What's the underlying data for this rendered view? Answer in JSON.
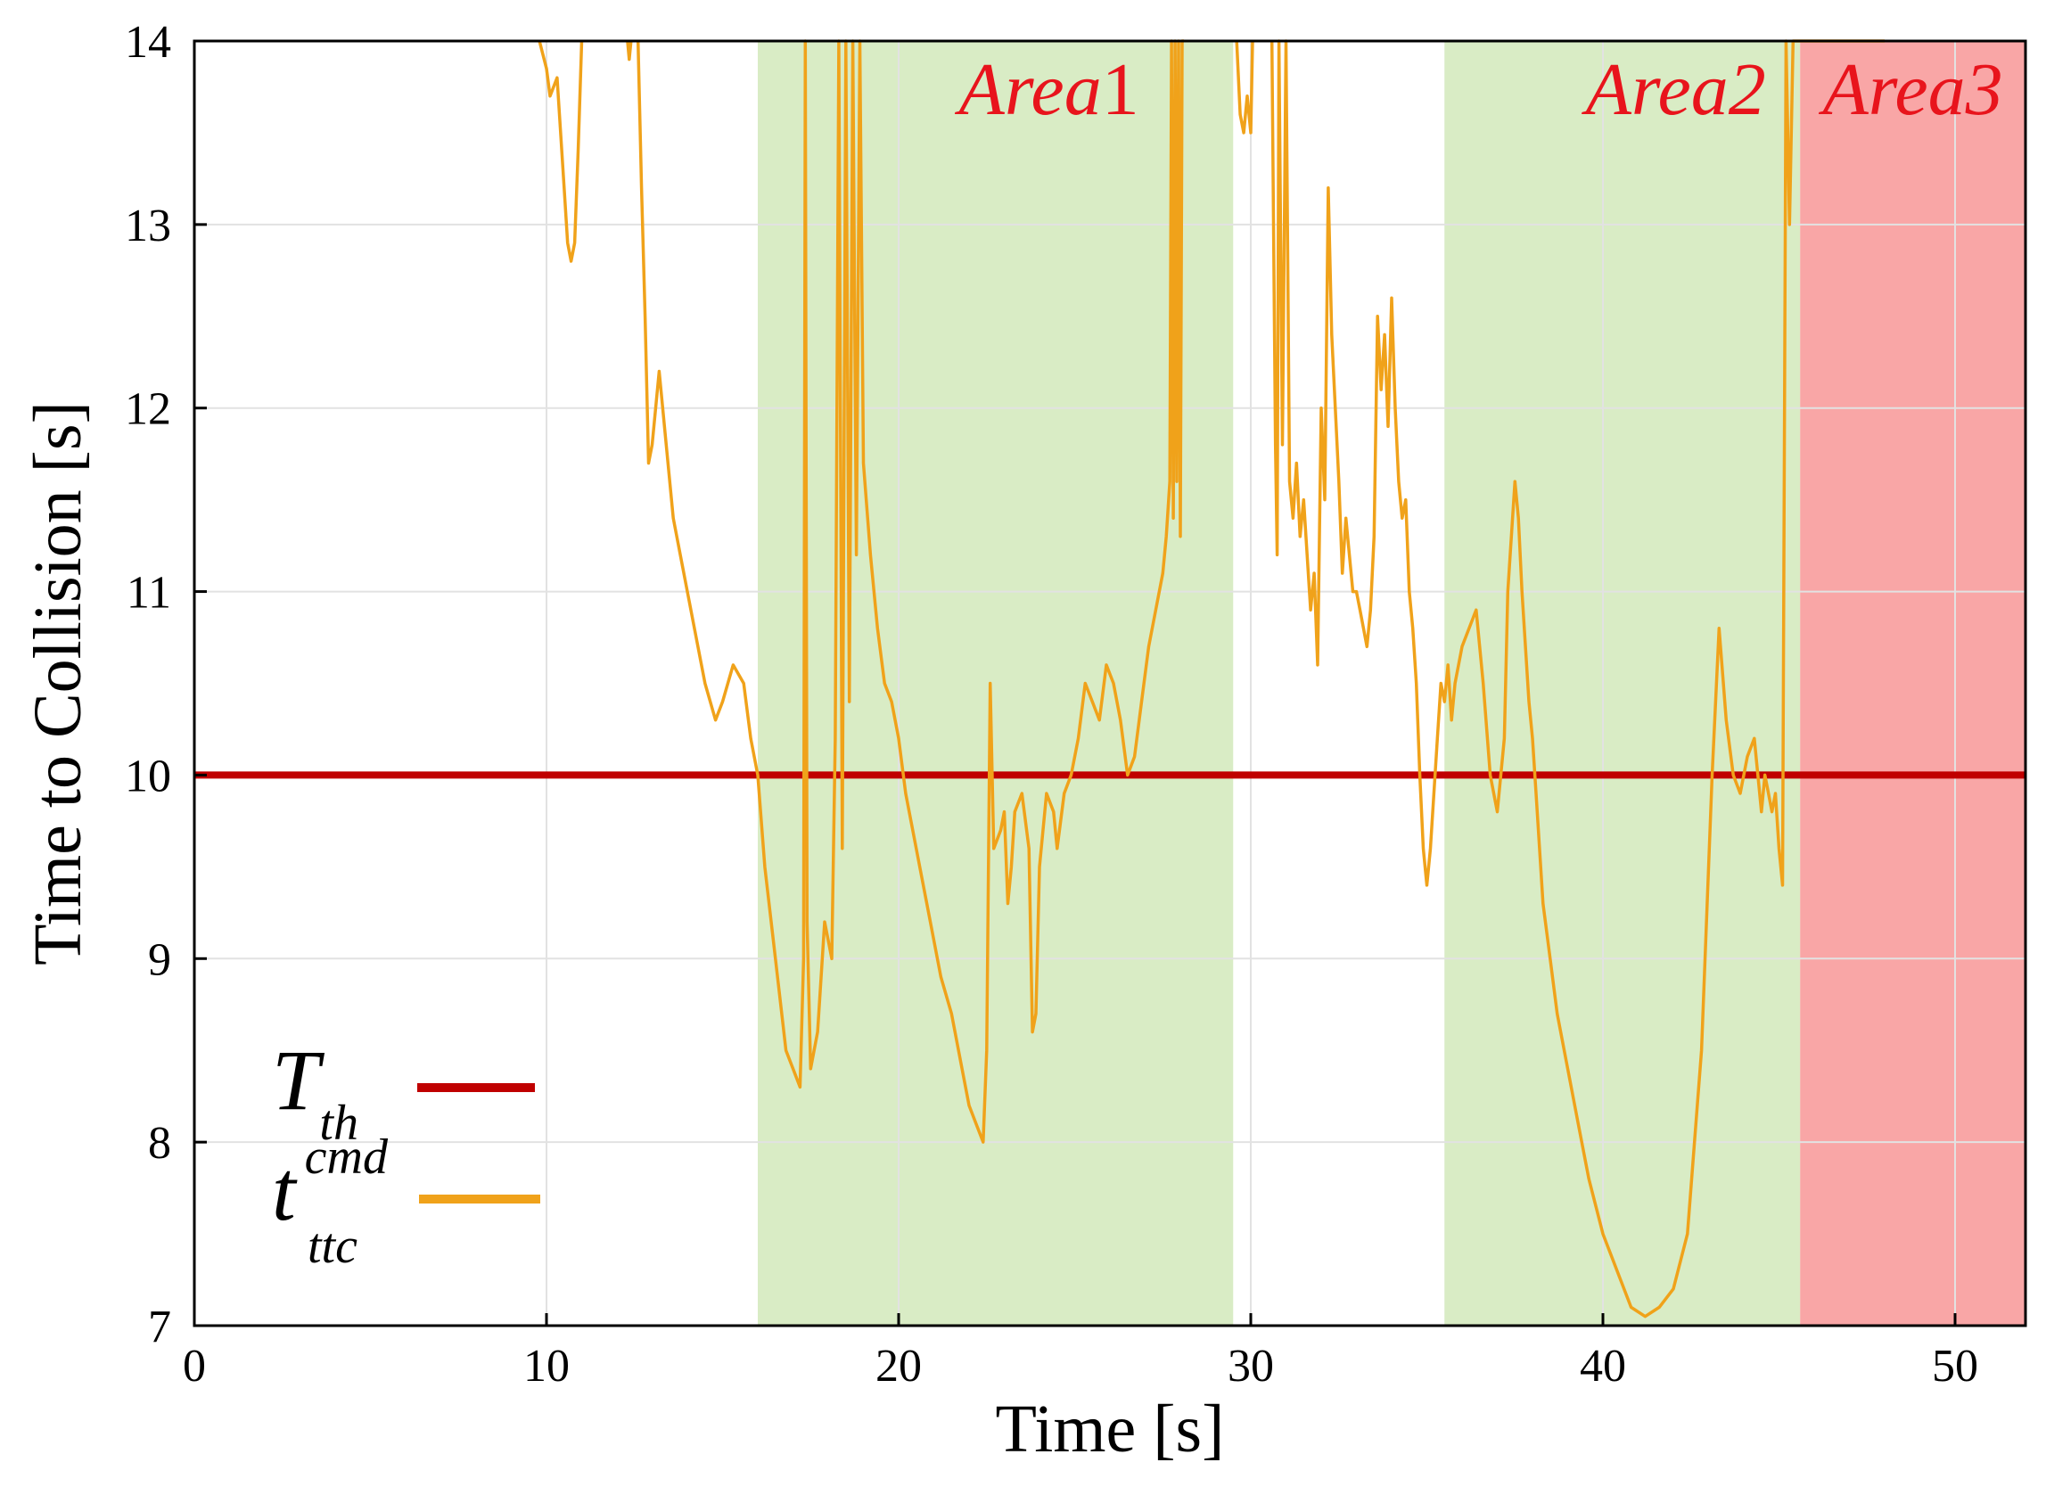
{
  "chart_data": {
    "type": "line",
    "title": "",
    "xlabel": "Time [s]",
    "ylabel": "Time to Collision [s]",
    "xlim": [
      0,
      52
    ],
    "ylim": [
      7,
      14
    ],
    "xticks": [
      0,
      10,
      20,
      30,
      40,
      50
    ],
    "yticks": [
      7,
      8,
      9,
      10,
      11,
      12,
      13,
      14
    ],
    "grid": true,
    "legend_position": "bottom-left",
    "regions": [
      {
        "label_main": "Area",
        "label_num": "1",
        "x_start": 16.0,
        "x_end": 29.5,
        "color": "#d9ecc5",
        "label_color": "#e8141c"
      },
      {
        "label_main": "Area2",
        "label_num": "",
        "x_start": 35.5,
        "x_end": 45.6,
        "color": "#d9ecc5",
        "label_color": "#e8141c"
      },
      {
        "label_main": "Area3",
        "label_num": "",
        "x_start": 45.6,
        "x_end": 52.0,
        "color": "#f9a6a6",
        "label_color": "#e8141c"
      }
    ],
    "series": [
      {
        "name": "T_th",
        "legend_base": "T",
        "legend_sub": "th",
        "legend_sup": "",
        "color": "#c00000",
        "x": [
          0,
          52
        ],
        "values": [
          10,
          10
        ]
      },
      {
        "name": "t_ttc^cmd",
        "legend_base": "t",
        "legend_sub": "ttc",
        "legend_sup": "cmd",
        "color": "#f0a21a",
        "segments": [
          {
            "x": [
              9.8,
              10.0,
              10.1,
              10.3,
              10.5,
              10.6,
              10.7,
              10.8,
              10.9,
              11.0
            ],
            "values": [
              14.0,
              13.85,
              13.7,
              13.8,
              13.2,
              12.9,
              12.8,
              12.9,
              13.4,
              14.0
            ]
          },
          {
            "x": [
              12.3,
              12.35,
              12.4
            ],
            "values": [
              14.0,
              13.9,
              14.0
            ]
          },
          {
            "x": [
              12.6,
              12.7,
              12.8,
              12.9,
              13.0,
              13.2,
              13.4,
              13.6,
              13.8,
              14.0,
              14.2,
              14.5,
              14.8,
              15.0,
              15.3,
              15.6,
              15.8,
              16.0,
              16.2,
              16.5,
              16.8,
              17.0,
              17.2,
              17.3,
              17.35,
              17.4,
              17.5,
              17.7,
              17.9,
              18.1,
              18.2,
              18.3,
              18.4,
              18.5,
              18.6,
              18.7,
              18.8,
              18.9,
              19.0,
              19.2,
              19.4,
              19.6,
              19.8,
              20.0,
              20.2,
              20.4,
              20.6,
              20.8,
              21.0,
              21.2,
              21.5,
              21.8,
              22.0,
              22.2,
              22.4,
              22.5,
              22.6,
              22.7,
              22.9,
              23.0,
              23.1,
              23.2,
              23.3,
              23.5,
              23.7,
              23.8,
              23.9,
              24.0,
              24.2,
              24.4,
              24.5,
              24.7,
              24.9,
              25.1,
              25.3,
              25.5,
              25.7,
              25.9,
              26.1,
              26.3,
              26.5,
              26.7,
              26.9,
              27.1,
              27.3,
              27.5,
              27.6,
              27.7,
              27.75,
              27.8,
              27.85,
              27.9,
              27.95,
              28.0,
              28.05,
              28.1
            ],
            "values": [
              14.0,
              13.2,
              12.5,
              11.7,
              11.8,
              12.2,
              11.8,
              11.4,
              11.2,
              11.0,
              10.8,
              10.5,
              10.3,
              10.4,
              10.6,
              10.5,
              10.2,
              10.0,
              9.5,
              9.0,
              8.5,
              8.4,
              8.3,
              9.0,
              14.0,
              9.2,
              8.4,
              8.6,
              9.2,
              9.0,
              10.2,
              14.0,
              9.6,
              14.0,
              10.4,
              14.0,
              11.2,
              14.0,
              11.7,
              11.2,
              10.8,
              10.5,
              10.4,
              10.2,
              9.9,
              9.7,
              9.5,
              9.3,
              9.1,
              8.9,
              8.7,
              8.4,
              8.2,
              8.1,
              8.0,
              8.5,
              10.5,
              9.6,
              9.7,
              9.8,
              9.3,
              9.5,
              9.8,
              9.9,
              9.6,
              8.6,
              8.7,
              9.5,
              9.9,
              9.8,
              9.6,
              9.9,
              10.0,
              10.2,
              10.5,
              10.4,
              10.3,
              10.6,
              10.5,
              10.3,
              10.0,
              10.1,
              10.4,
              10.7,
              10.9,
              11.1,
              11.3,
              11.6,
              14.0,
              11.4,
              14.0,
              11.6,
              14.0,
              11.3,
              14.0,
              14.0
            ]
          },
          {
            "x": [
              29.6,
              29.7,
              29.8,
              29.9,
              30.0,
              30.05
            ],
            "values": [
              14.0,
              13.6,
              13.5,
              13.7,
              13.5,
              14.0
            ]
          },
          {
            "x": [
              30.6,
              30.7,
              30.75,
              30.8,
              30.9,
              31.0,
              31.1,
              31.2,
              31.3,
              31.4,
              31.5,
              31.6,
              31.7,
              31.8,
              31.9,
              32.0,
              32.1,
              32.2,
              32.3,
              32.4,
              32.5,
              32.6,
              32.7,
              32.8,
              32.9,
              33.0,
              33.1,
              33.2,
              33.3,
              33.4,
              33.5,
              33.6,
              33.7,
              33.8,
              33.9,
              34.0,
              34.1,
              34.2,
              34.3,
              34.4,
              34.5,
              34.6,
              34.7,
              34.8,
              34.9,
              35.0,
              35.1,
              35.2,
              35.3,
              35.4,
              35.5,
              35.6,
              35.7,
              35.8,
              36.0,
              36.2,
              36.4,
              36.6,
              36.8,
              37.0,
              37.2,
              37.3,
              37.4,
              37.5,
              37.6,
              37.7,
              37.8,
              37.9,
              38.0,
              38.1,
              38.2,
              38.3,
              38.5,
              38.7,
              39.0,
              39.3,
              39.6,
              40.0,
              40.4,
              40.8,
              41.2,
              41.6,
              42.0,
              42.4,
              42.8,
              43.1,
              43.3,
              43.5,
              43.7,
              43.9,
              44.1,
              44.3,
              44.4,
              44.5,
              44.6,
              44.7,
              44.8,
              44.9,
              45.0,
              45.1,
              45.2,
              45.3,
              45.4,
              45.5,
              45.6,
              45.8,
              46.0,
              46.2,
              46.4,
              46.6,
              46.8,
              47.0,
              47.2,
              47.3,
              47.4,
              47.45,
              47.5,
              47.6,
              47.7,
              47.8,
              47.9,
              48.0
            ],
            "values": [
              14.0,
              11.8,
              11.2,
              14.0,
              11.8,
              14.0,
              11.6,
              11.4,
              11.7,
              11.3,
              11.5,
              11.2,
              10.9,
              11.1,
              10.6,
              12.0,
              11.5,
              13.2,
              12.4,
              12.0,
              11.6,
              11.1,
              11.4,
              11.2,
              11.0,
              11.0,
              10.9,
              10.8,
              10.7,
              10.9,
              11.3,
              12.5,
              12.1,
              12.4,
              11.9,
              12.6,
              12.0,
              11.6,
              11.4,
              11.5,
              11.0,
              10.8,
              10.5,
              10.0,
              9.6,
              9.4,
              9.6,
              9.9,
              10.2,
              10.5,
              10.4,
              10.6,
              10.3,
              10.5,
              10.7,
              10.8,
              10.9,
              10.5,
              10.0,
              9.8,
              10.2,
              11.0,
              11.3,
              11.6,
              11.4,
              11.0,
              10.7,
              10.4,
              10.2,
              9.9,
              9.6,
              9.3,
              9.0,
              8.7,
              8.4,
              8.1,
              7.8,
              7.5,
              7.3,
              7.1,
              7.05,
              7.1,
              7.2,
              7.5,
              8.5,
              10.0,
              10.8,
              10.3,
              10.0,
              9.9,
              10.1,
              10.2,
              10.0,
              9.8,
              10.0,
              9.9,
              9.8,
              9.9,
              9.6,
              9.4,
              14.0,
              13.0,
              14.0,
              14.0,
              14.0,
              14.0,
              14.0,
              14.0,
              14.0,
              14.0,
              14.0,
              14.0,
              14.0,
              14.0,
              14.0,
              14.0,
              14.0,
              14.0,
              14.0,
              14.0,
              14.0,
              14.0
            ]
          }
        ]
      }
    ]
  }
}
